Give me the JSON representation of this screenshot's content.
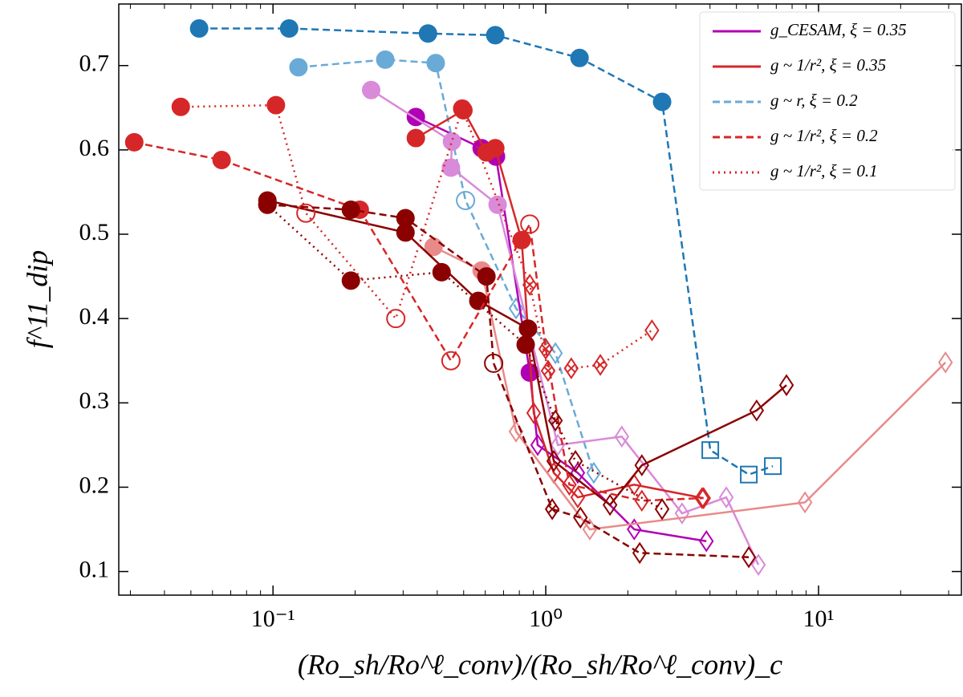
{
  "chart_data": {
    "type": "line",
    "x_label": "(Ro_sh/Ro^ℓ_conv)/(Ro_sh/Ro^ℓ_conv)_c",
    "y_label": "f^11_dip",
    "log_x": true,
    "xlim": [
      0.0272,
      33.4
    ],
    "ylim": [
      0.072,
      0.773
    ],
    "xticks": [
      {
        "value": 0.1,
        "label": "10⁻¹"
      },
      {
        "value": 1,
        "label": "10⁰"
      },
      {
        "value": 10,
        "label": "10¹"
      }
    ],
    "xminorticks": [
      0.03,
      0.04,
      0.05,
      0.06,
      0.07,
      0.08,
      0.09,
      0.2,
      0.3,
      0.4,
      0.5,
      0.6,
      0.7,
      0.8,
      0.9,
      2,
      3,
      4,
      5,
      6,
      7,
      8,
      9,
      20,
      30
    ],
    "yticks": [
      0.1,
      0.2,
      0.3,
      0.4,
      0.5,
      0.6,
      0.7
    ],
    "legend_position": "upper right",
    "legend": [
      {
        "label": "g_CESAM, ξ = 0.35",
        "color": "#b000b5",
        "line": "solid"
      },
      {
        "label": "g ~ 1/r², ξ = 0.35",
        "color": "#d62728",
        "line": "solid"
      },
      {
        "label": "g ~ r, ξ = 0.2",
        "color": "#6aaad6",
        "line": "dashed"
      },
      {
        "label": "g ~ 1/r², ξ = 0.2",
        "color": "#d62728",
        "line": "dashed"
      },
      {
        "label": "g ~ 1/r², ξ = 0.1",
        "color": "#d62728",
        "line": "dotted"
      }
    ],
    "series": [
      {
        "color": "#1f77b4",
        "line": "dashed",
        "markers": [
          "o",
          "o",
          "o",
          "o",
          "o",
          "o",
          "s",
          "s",
          "s"
        ],
        "x": [
          0.0536,
          0.1146,
          0.37,
          0.653,
          1.33,
          2.67,
          4.01,
          5.55,
          6.8
        ],
        "values": [
          0.744,
          0.744,
          0.738,
          0.736,
          0.709,
          0.657,
          0.244,
          0.215,
          0.225
        ]
      },
      {
        "color": "#6aaad6",
        "line": "dashed",
        "markers": [
          "o",
          "o",
          "o",
          "open",
          "d",
          "d",
          "d"
        ],
        "x": [
          0.124,
          0.258,
          0.395,
          0.508,
          0.778,
          1.085,
          1.5
        ],
        "values": [
          0.698,
          0.707,
          0.703,
          0.54,
          0.412,
          0.359,
          0.217
        ]
      },
      {
        "color": "#b000b5",
        "line": "solid",
        "markers": [
          "o",
          "o",
          "o",
          "o",
          "d",
          "d",
          "d",
          "d"
        ],
        "x": [
          0.334,
          0.582,
          0.657,
          0.874,
          0.934,
          1.31,
          2.11,
          3.88
        ],
        "values": [
          0.639,
          0.602,
          0.592,
          0.336,
          0.25,
          0.217,
          0.15,
          0.136
        ]
      },
      {
        "color": "#d98ad9",
        "line": "solid",
        "markers": [
          "o",
          "o",
          "o",
          "o",
          "d",
          "d",
          "d",
          "d",
          "d"
        ],
        "x": [
          0.229,
          0.453,
          0.449,
          0.666,
          1.107,
          1.9,
          3.16,
          4.59,
          6.02
        ],
        "values": [
          0.671,
          0.61,
          0.579,
          0.535,
          0.25,
          0.26,
          0.169,
          0.188,
          0.108
        ]
      },
      {
        "color": "#d62728",
        "line": "solid",
        "markers": [
          "o",
          "o",
          "o",
          "o",
          "o",
          "d",
          "d",
          "d",
          "d",
          "d"
        ],
        "x": [
          0.334,
          0.499,
          0.606,
          0.653,
          0.816,
          0.903,
          1.07,
          1.31,
          2.11,
          3.79
        ],
        "values": [
          0.614,
          0.647,
          0.597,
          0.602,
          0.493,
          0.288,
          0.217,
          0.188,
          0.203,
          0.187
        ]
      },
      {
        "color": "#e88a8a",
        "line": "solid",
        "markers": [
          "o",
          "o",
          "d",
          "d",
          "d",
          "d"
        ],
        "x": [
          0.388,
          0.582,
          0.778,
          1.45,
          8.92,
          29.2
        ],
        "values": [
          0.485,
          0.457,
          0.266,
          0.15,
          0.182,
          0.348
        ]
      },
      {
        "color": "#8b0000",
        "line": "solid",
        "markers": [
          "o",
          "o",
          "o",
          "o",
          "d",
          "d",
          "d",
          "d",
          "d"
        ],
        "x": [
          0.0954,
          0.306,
          0.566,
          0.861,
          1.07,
          1.72,
          2.25,
          5.93,
          7.63
        ],
        "values": [
          0.54,
          0.502,
          0.421,
          0.388,
          0.231,
          0.179,
          0.226,
          0.291,
          0.321
        ]
      },
      {
        "color": "#d62728",
        "line": "dashed",
        "markers": [
          "o",
          "o",
          "o",
          "open",
          "open",
          "x",
          "d",
          "d",
          "d"
        ],
        "x": [
          0.031,
          0.0648,
          0.208,
          0.449,
          0.874,
          1.0,
          1.22,
          2.25,
          3.74
        ],
        "values": [
          0.609,
          0.588,
          0.529,
          0.35,
          0.512,
          0.364,
          0.203,
          0.184,
          0.187
        ]
      },
      {
        "color": "#d62728",
        "line": "dotted",
        "markers": [
          "o",
          "o",
          "open",
          "open",
          "o",
          "x",
          "x",
          "x",
          "x",
          "d"
        ],
        "x": [
          0.0459,
          0.1025,
          0.132,
          0.282,
          0.494,
          0.874,
          1.02,
          1.24,
          1.585,
          2.45
        ],
        "values": [
          0.651,
          0.653,
          0.525,
          0.4,
          0.649,
          0.44,
          0.338,
          0.341,
          0.345,
          0.386
        ]
      },
      {
        "color": "#8b0000",
        "line": "dashed",
        "markers": [
          "o",
          "o",
          "o",
          "o",
          "open",
          "x",
          "d",
          "d",
          "d"
        ],
        "x": [
          0.0954,
          0.193,
          0.306,
          0.606,
          0.644,
          1.056,
          1.34,
          2.21,
          5.55
        ],
        "values": [
          0.535,
          0.529,
          0.519,
          0.45,
          0.347,
          0.174,
          0.164,
          0.122,
          0.117
        ]
      },
      {
        "color": "#8b0000",
        "line": "dotted",
        "markers": [
          "o",
          "o",
          "o",
          "o",
          "x",
          "d",
          "d"
        ],
        "x": [
          0.0954,
          0.193,
          0.415,
          0.844,
          1.085,
          1.285,
          2.67
        ],
        "values": [
          0.535,
          0.445,
          0.455,
          0.369,
          0.279,
          0.231,
          0.174
        ]
      }
    ]
  }
}
